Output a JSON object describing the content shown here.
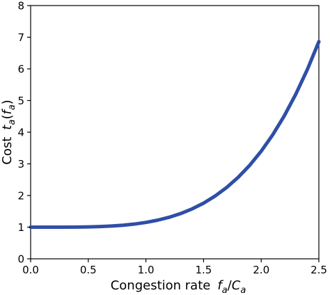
{
  "chart_data": {
    "type": "line",
    "x_ticks": [
      "0.0",
      "0.5",
      "1.0",
      "1.5",
      "2.0",
      "2.5"
    ],
    "y_ticks": [
      "0",
      "1",
      "2",
      "3",
      "4",
      "5",
      "6",
      "7",
      "8"
    ],
    "xlim": [
      0,
      2.5
    ],
    "ylim": [
      0,
      8
    ],
    "xlabel": {
      "prefix": "Congestion rate",
      "var": "f",
      "sub": "a",
      "slash": "/",
      "var2": "C",
      "sub2": "a"
    },
    "ylabel": {
      "prefix": "Cost",
      "var": "t",
      "sub": "a",
      "arg": "f",
      "argsub": "a"
    },
    "grid": false,
    "line_color": "#2f4fa6",
    "series": [
      {
        "x": [
          0.0,
          0.1,
          0.2,
          0.3,
          0.4,
          0.5,
          0.6,
          0.7,
          0.8,
          0.9,
          1.0,
          1.1,
          1.2,
          1.3,
          1.4,
          1.5,
          1.6,
          1.7,
          1.8,
          1.9,
          2.0,
          2.1,
          2.2,
          2.3,
          2.4,
          2.5
        ],
        "y": [
          1.0,
          1.0,
          1.0,
          1.0,
          1.004,
          1.009,
          1.019,
          1.036,
          1.061,
          1.098,
          1.15,
          1.22,
          1.311,
          1.428,
          1.576,
          1.759,
          1.983,
          2.253,
          2.574,
          2.954,
          3.4,
          3.918,
          4.516,
          5.201,
          5.98,
          6.86
        ]
      }
    ]
  }
}
